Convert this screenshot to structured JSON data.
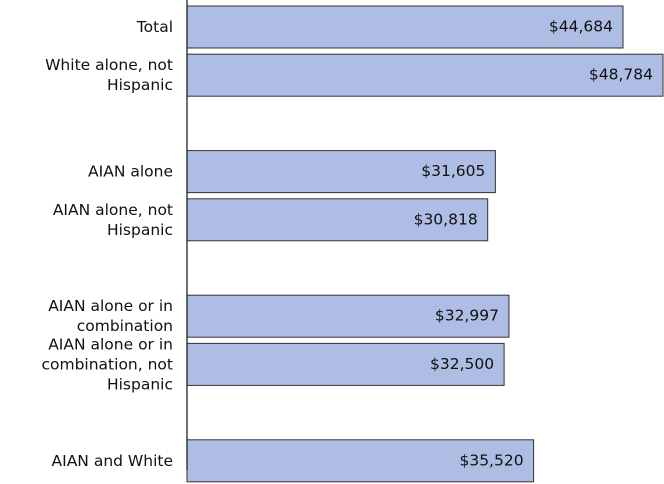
{
  "chart_data": {
    "type": "bar",
    "orientation": "horizontal",
    "categories": [
      "Total",
      "White alone, not\nHispanic",
      "AIAN alone",
      "AIAN alone, not\nHispanic",
      "AIAN alone or in\ncombination",
      "AIAN alone or in\ncombination, not\nHispanic",
      "AIAN and White"
    ],
    "values": [
      44684,
      48784,
      31605,
      30818,
      32997,
      32500,
      35520
    ],
    "value_labels": [
      "$44,684",
      "$48,784",
      "$31,605",
      "$30,818",
      "$32,997",
      "$32,500",
      "$35,520"
    ],
    "color": "#aebde3"
  }
}
